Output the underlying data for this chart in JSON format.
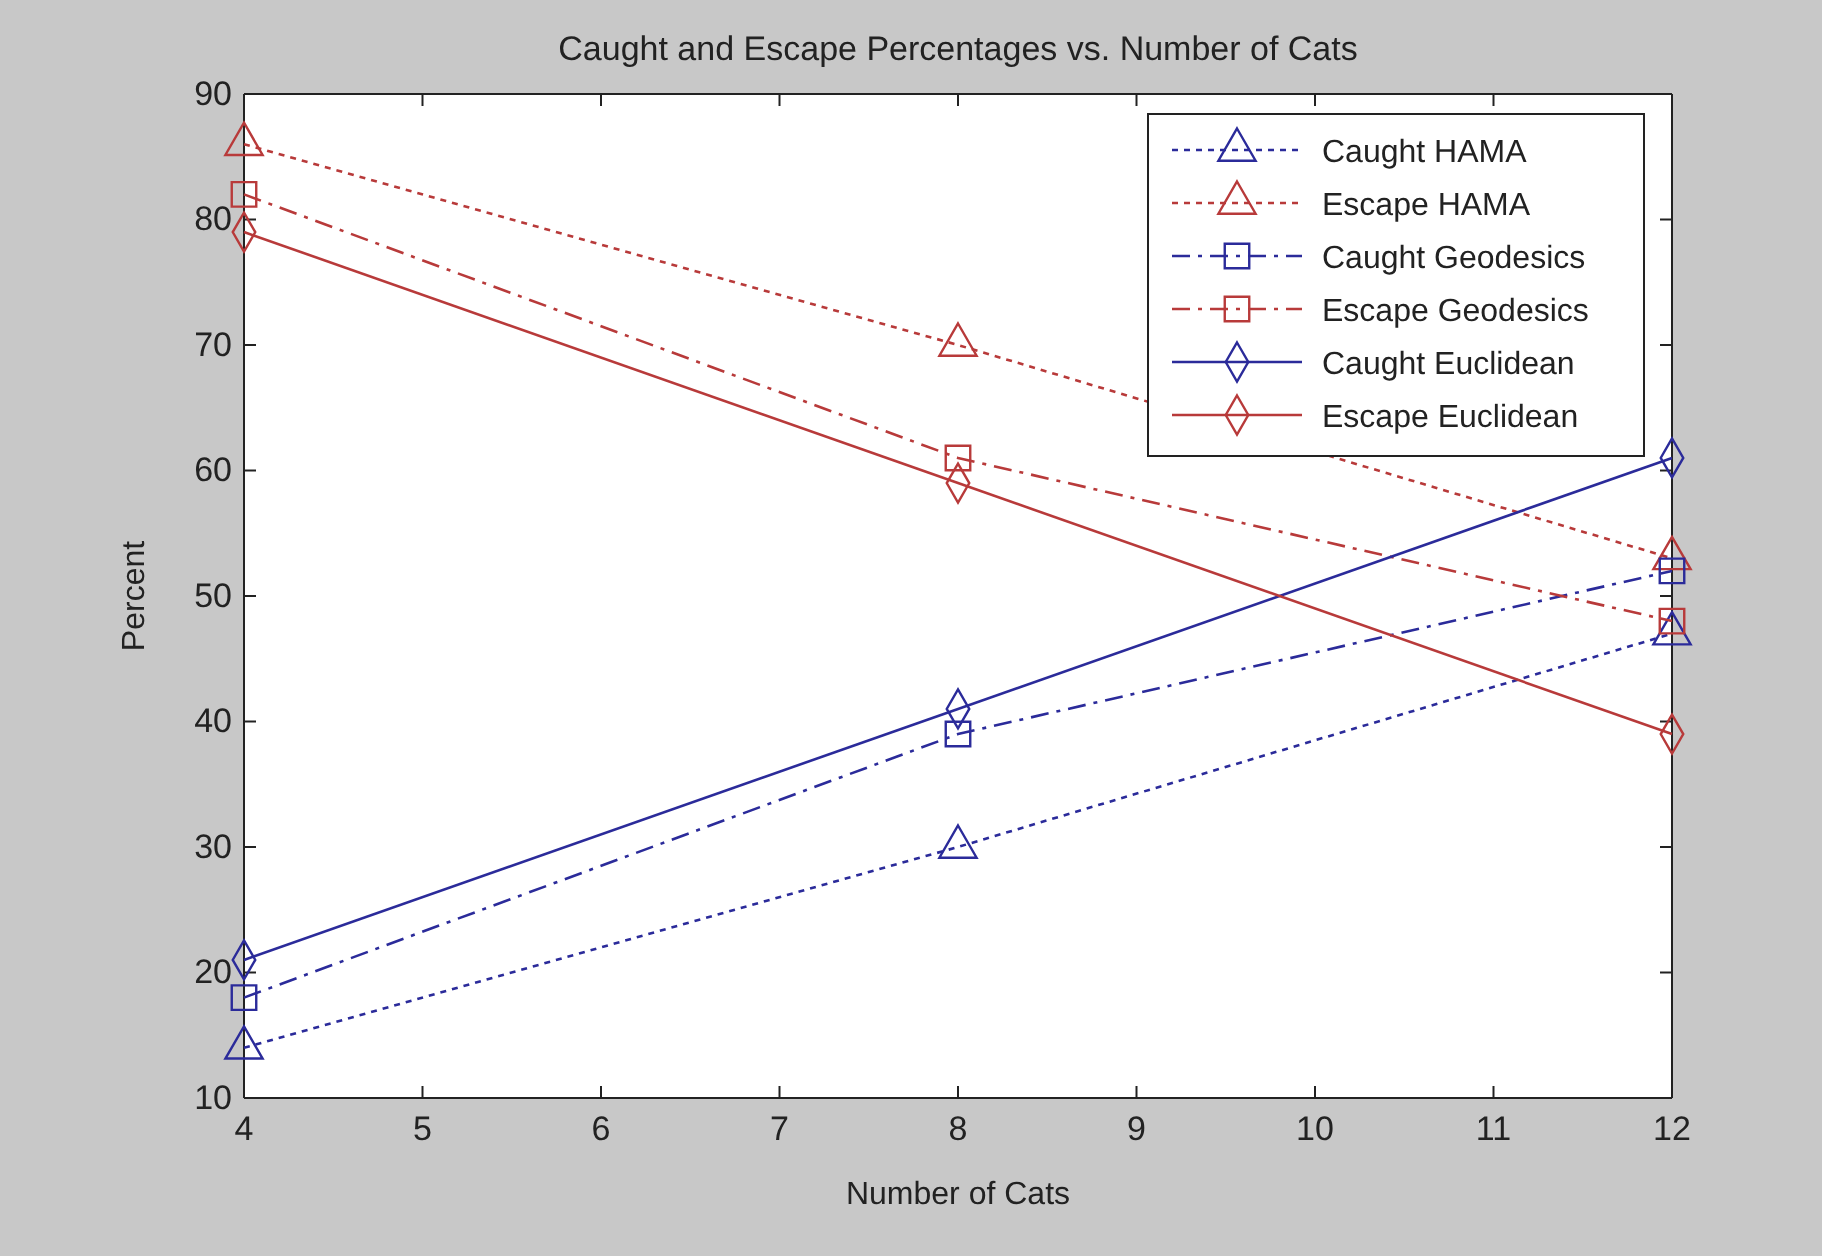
{
  "chart_data": {
    "type": "line",
    "title": "Caught and Escape Percentages vs. Number of Cats",
    "xlabel": "Number of Cats",
    "ylabel": "Percent",
    "x": [
      4,
      8,
      12
    ],
    "xlim": [
      4,
      12
    ],
    "xticks": [
      4,
      5,
      6,
      7,
      8,
      9,
      10,
      11,
      12
    ],
    "ylim": [
      10,
      90
    ],
    "yticks": [
      10,
      20,
      30,
      40,
      50,
      60,
      70,
      80,
      90
    ],
    "grid": false,
    "legend": "top right",
    "series": [
      {
        "name": "Caught HAMA",
        "color": "#2b2b9a",
        "values": [
          14,
          30,
          47
        ],
        "marker": "triangle",
        "line_style": "dotted"
      },
      {
        "name": "Escape HAMA",
        "color": "#b83a3a",
        "values": [
          86,
          70,
          53
        ],
        "marker": "triangle",
        "line_style": "dotted"
      },
      {
        "name": "Caught Geodesics",
        "color": "#2b2b9a",
        "values": [
          18,
          39,
          52
        ],
        "marker": "square",
        "line_style": "dashed"
      },
      {
        "name": "Escape Geodesics",
        "color": "#b83a3a",
        "values": [
          82,
          61,
          48
        ],
        "marker": "square",
        "line_style": "dashed"
      },
      {
        "name": "Caught Euclidean",
        "color": "#2b2b9a",
        "values": [
          21,
          41,
          61
        ],
        "marker": "diamond",
        "line_style": "solid"
      },
      {
        "name": "Escape Euclidean",
        "color": "#b83a3a",
        "values": [
          79,
          59,
          39
        ],
        "marker": "diamond",
        "line_style": "solid"
      }
    ]
  }
}
